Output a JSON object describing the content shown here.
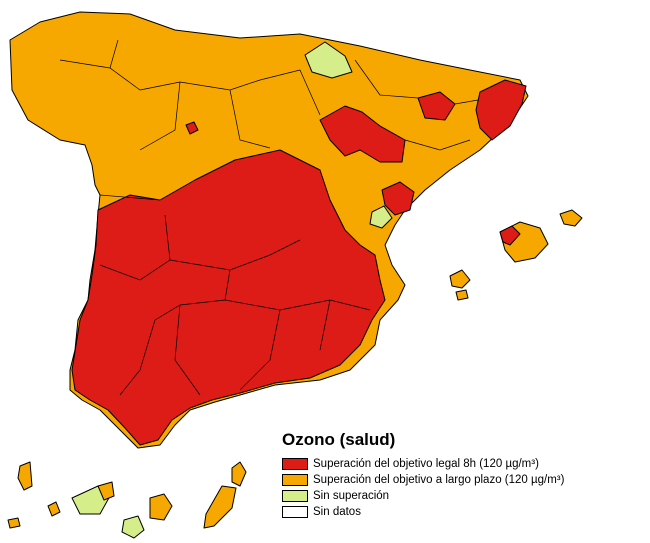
{
  "legend": {
    "title": "Ozono (salud)",
    "items": [
      {
        "label": "Superación del objetivo legal 8h (120 µg/m³)",
        "color": "#dd1b17"
      },
      {
        "label": "Superación del objetivo a largo plazo (120  µg/m³)",
        "color": "#f7a800"
      },
      {
        "label": "Sin superación",
        "color": "#d6ee8a"
      },
      {
        "label": "Sin datos",
        "color": "#ffffff"
      }
    ]
  },
  "colors": {
    "red": "#dd1b17",
    "orange": "#f7a800",
    "green": "#d6ee8a",
    "none": "#ffffff"
  }
}
